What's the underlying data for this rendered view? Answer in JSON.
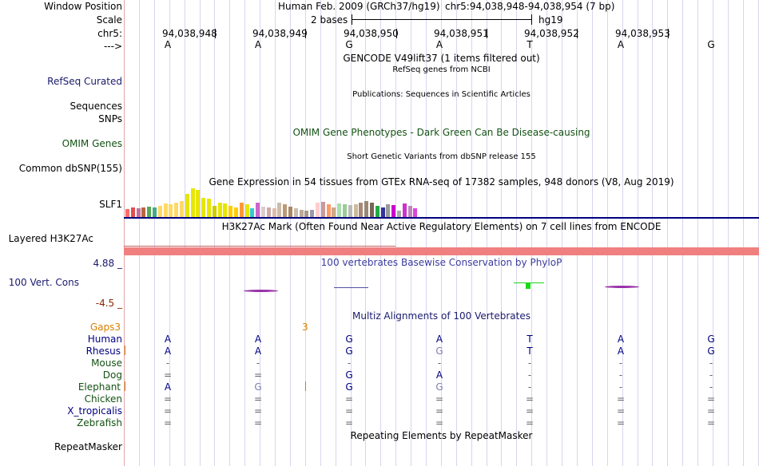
{
  "header": {
    "window_position_label": "Window Position",
    "scale_label": "Scale",
    "chrom_label": "chr5:",
    "strand_label": "--->",
    "assembly": "Human Feb. 2009 (GRCh37/hg19)",
    "position": "chr5:94,038,948-94,038,954 (7 bp)",
    "scale_text": "2 bases",
    "db": "hg19",
    "coords": [
      "94,038,948",
      "94,038,949",
      "94,038,950",
      "94,038,951",
      "94,038,952",
      "94,038,953"
    ],
    "bases": [
      "A",
      "A",
      "G",
      "A",
      "T",
      "A",
      "G"
    ]
  },
  "tracks": {
    "gencode_title": "GENCODE V49lift37 (1 items filtered out)",
    "refseq_subtitle": "RefSeq genes from NCBI",
    "refseq_label": "RefSeq Curated",
    "publications_title": "Publications: Sequences in Scientific Articles",
    "sequences_label": "Sequences",
    "snps_label": "SNPs",
    "omim_title": "OMIM Gene Phenotypes - Dark Green Can Be Disease-causing",
    "omim_label": "OMIM Genes",
    "dbsnp_title": "Short Genetic Variants from dbSNP release 155",
    "dbsnp_label": "Common dbSNP(155)",
    "gtex_title": "Gene Expression in 54 tissues from GTEx RNA-seq of 17382 samples, 948 donors (V8, Aug 2019)",
    "gtex_gene": "SLF1",
    "h3k27_title": "H3K27Ac Mark (Often Found Near Active Regulatory Elements) on 7 cell lines from ENCODE",
    "h3k27_label": "Layered H3K27Ac",
    "phylop_title": "100 vertebrates Basewise Conservation by PhyloP",
    "phylop_label": "100 Vert. Cons",
    "phylop_max": "4.88 _",
    "phylop_min": "-4.5 _",
    "multiz_title": "Multiz Alignments of 100 Vertebrates",
    "gaps_label": "Gaps",
    "gaps_value": "3",
    "repeat_title": "Repeating Elements by RepeatMasker",
    "repeat_label": "RepeatMasker"
  },
  "colors": {
    "h3k27": "#f08080",
    "track_sep": "#000080",
    "phylop_pos": "#19d919",
    "phylop_neg": "#9932a8"
  },
  "gtex_values": [
    0.25,
    0.3,
    0.28,
    0.3,
    0.32,
    0.3,
    0.35,
    0.42,
    0.4,
    0.45,
    0.5,
    0.72,
    0.9,
    0.85,
    0.6,
    0.58,
    0.35,
    0.45,
    0.42,
    0.36,
    0.3,
    0.45,
    0.4,
    0.28,
    0.45,
    0.32,
    0.3,
    0.28,
    0.45,
    0.4,
    0.32,
    0.28,
    0.22,
    0.2,
    0.22,
    0.45,
    0.48,
    0.4,
    0.3,
    0.42,
    0.4,
    0.38,
    0.4,
    0.45,
    0.5,
    0.45,
    0.35,
    0.3,
    0.4,
    0.38,
    0.2,
    0.42,
    0.35,
    0.28
  ],
  "gtex_colors": [
    "#ff6b6b",
    "#e05050",
    "#c46e9c",
    "#b5683d",
    "#55aa55",
    "#44aa88",
    "#ffd966",
    "#ffd966",
    "#ffd966",
    "#ffd966",
    "#ffd966",
    "#e6e600",
    "#e6e600",
    "#e6e600",
    "#e6e600",
    "#e6e600",
    "#cccc00",
    "#e6e600",
    "#e6e600",
    "#ffcc00",
    "#ffcc00",
    "#ff9933",
    "#e6e600",
    "#33cccc",
    "#cc66cc",
    "#ddcccc",
    "#ccaaaa",
    "#ddbbaa",
    "#ccbbaa",
    "#bb9977",
    "#aa8866",
    "#ccbbaa",
    "#bbaa99",
    "#aa9988",
    "#9999aa",
    "#ffcccc",
    "#cc9999",
    "#ff9966",
    "#ccaa88",
    "#aaddaa",
    "#99cc99",
    "#bbbbbb",
    "#ccbb99",
    "#aa8877",
    "#998877",
    "#776655",
    "#22aa44",
    "#333399",
    "#999999",
    "#cc00cc",
    "#aaaaaa",
    "#cc33cc",
    "#bb88bb",
    "#dd44dd"
  ],
  "species": [
    {
      "name": "Human",
      "color": "#000080",
      "bases": [
        "A",
        "A",
        "G",
        "A",
        "T",
        "A",
        "G"
      ]
    },
    {
      "name": "Rhesus",
      "color": "#000080",
      "bases": [
        "A",
        "A",
        "G",
        "G",
        "T",
        "A",
        "G"
      ]
    },
    {
      "name": "Mouse",
      "color": "#145214",
      "bases": [
        "-",
        "-",
        "-",
        "-",
        "-",
        "-",
        "-"
      ]
    },
    {
      "name": "Dog",
      "color": "#145214",
      "bases": [
        "=",
        "=",
        "G",
        "A",
        "-",
        "-",
        "-"
      ]
    },
    {
      "name": "Elephant",
      "color": "#145214",
      "bases": [
        "A",
        "G",
        "G",
        "G",
        "-",
        "-",
        "-"
      ]
    },
    {
      "name": "Chicken",
      "color": "#145214",
      "bases": [
        "=",
        "=",
        "=",
        "=",
        "=",
        "=",
        "="
      ]
    },
    {
      "name": "X_tropicalis",
      "color": "#000080",
      "bases": [
        "=",
        "=",
        "=",
        "=",
        "=",
        "=",
        "="
      ]
    },
    {
      "name": "Zebrafish",
      "color": "#145214",
      "bases": [
        "=",
        "=",
        "=",
        "=",
        "=",
        "=",
        "="
      ]
    }
  ]
}
